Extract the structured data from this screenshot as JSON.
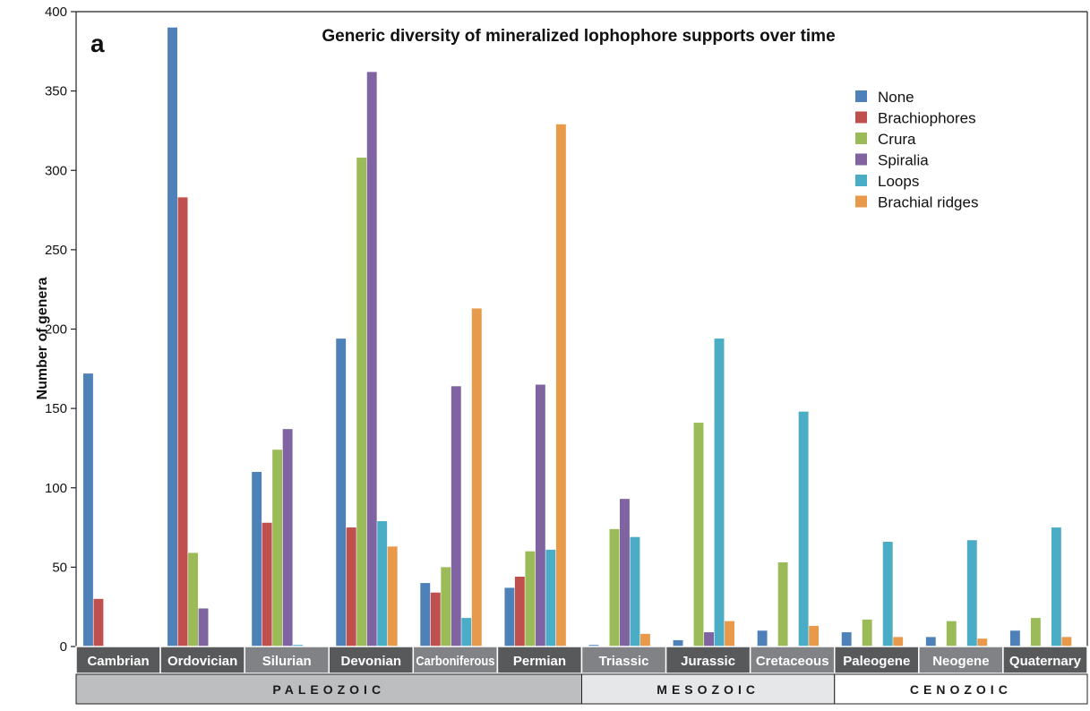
{
  "chart_data": {
    "type": "bar",
    "title": "Generic diversity of mineralized lophophore supports over time",
    "panel_label": "a",
    "ylabel": "Number of genera",
    "xlabel": "",
    "ylim": [
      0,
      400
    ],
    "yticks": [
      0,
      50,
      100,
      150,
      200,
      250,
      300,
      350,
      400
    ],
    "grid": false,
    "legend_position": "top-right",
    "categories": [
      "Cambrian",
      "Ordovician",
      "Silurian",
      "Devonian",
      "Carboniferous",
      "Permian",
      "Triassic",
      "Jurassic",
      "Cretaceous",
      "Paleogene",
      "Neogene",
      "Quaternary"
    ],
    "eras": [
      {
        "name": "PALEOZOIC",
        "periods": [
          "Cambrian",
          "Ordovician",
          "Silurian",
          "Devonian",
          "Carboniferous",
          "Permian"
        ],
        "color": "#bcbec0",
        "text_color": "#1a1a1a"
      },
      {
        "name": "MESOZOIC",
        "periods": [
          "Triassic",
          "Jurassic",
          "Cretaceous"
        ],
        "color": "#e6e7e8",
        "text_color": "#1a1a1a"
      },
      {
        "name": "CENOZOIC",
        "periods": [
          "Paleogene",
          "Neogene",
          "Quaternary"
        ],
        "color": "#ffffff",
        "text_color": "#1a1a1a"
      }
    ],
    "period_colors": [
      "#58595b",
      "#58595b",
      "#808285",
      "#58595b",
      "#808285",
      "#58595b",
      "#808285",
      "#58595b",
      "#808285",
      "#58595b",
      "#808285",
      "#58595b"
    ],
    "series": [
      {
        "name": "None",
        "color": "#4f81b9",
        "values": [
          172,
          390,
          110,
          194,
          40,
          37,
          1,
          4,
          10,
          9,
          6,
          10
        ]
      },
      {
        "name": "Brachiophores",
        "color": "#c0504d",
        "values": [
          30,
          283,
          78,
          75,
          34,
          44,
          0,
          0,
          0,
          0,
          0,
          0
        ]
      },
      {
        "name": "Crura",
        "color": "#9bbb59",
        "values": [
          0,
          59,
          124,
          308,
          50,
          60,
          74,
          141,
          53,
          17,
          16,
          18
        ]
      },
      {
        "name": "Spiralia",
        "color": "#8064a2",
        "values": [
          0,
          24,
          137,
          362,
          164,
          165,
          93,
          9,
          0,
          0,
          0,
          0
        ]
      },
      {
        "name": "Loops",
        "color": "#4bacc6",
        "values": [
          0,
          0,
          1,
          79,
          18,
          61,
          69,
          194,
          148,
          66,
          67,
          75
        ]
      },
      {
        "name": "Brachial ridges",
        "color": "#e8994a",
        "values": [
          0,
          0,
          0,
          63,
          213,
          329,
          8,
          16,
          13,
          6,
          5,
          6
        ]
      }
    ]
  }
}
